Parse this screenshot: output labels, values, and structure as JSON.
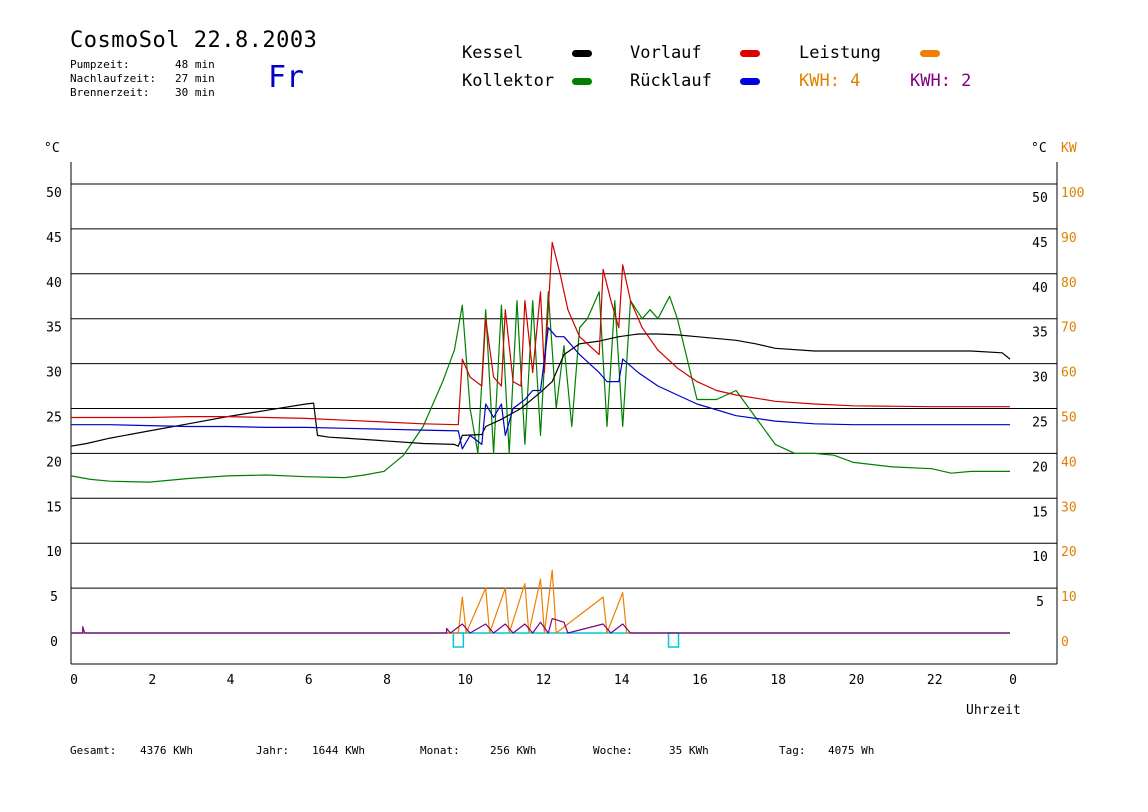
{
  "header": {
    "title": "CosmoSol 22.8.2003",
    "day": "Fr",
    "info": [
      {
        "label": "Pumpzeit:",
        "value": "48 min"
      },
      {
        "label": "Nachlaufzeit:",
        "value": "27 min"
      },
      {
        "label": "Brennerzeit:",
        "value": "30 min"
      }
    ]
  },
  "legend": {
    "kessel": "Kessel",
    "kollektor": "Kollektor",
    "vorlauf": "Vorlauf",
    "ruecklauf": "Rücklauf",
    "leistung": "Leistung",
    "kwh1": "KWH: 4",
    "kwh2": "KWH: 2"
  },
  "footer": {
    "gesamt_label": "Gesamt:",
    "gesamt_value": "4376 KWh",
    "jahr_label": "Jahr:",
    "jahr_value": "1644 KWh",
    "monat_label": "Monat:",
    "monat_value": "256 KWh",
    "woche_label": "Woche:",
    "woche_value": "35 KWh",
    "tag_label": "Tag:",
    "tag_value": "4075 Wh"
  },
  "colors": {
    "kessel": "#000000",
    "kollektor": "#008000",
    "vorlauf": "#d00000",
    "ruecklauf": "#0000c8",
    "leistung": "#f08000",
    "kwh2": "#800080",
    "pump": "#00c8d8"
  },
  "chart_data": {
    "type": "line",
    "xlabel": "Uhrzeit",
    "ylabel_left": "°C",
    "ylabel_right_temp": "°C",
    "ylabel_right_power": "KW",
    "xlim": [
      0,
      24
    ],
    "ylim": [
      0,
      50
    ],
    "x_ticks": [
      "0",
      "2",
      "4",
      "6",
      "8",
      "10",
      "12",
      "14",
      "16",
      "18",
      "20",
      "22",
      "0"
    ],
    "y_ticks_left": [
      "0",
      "5",
      "10",
      "15",
      "20",
      "25",
      "30",
      "35",
      "40",
      "45",
      "50"
    ],
    "y_ticks_right_temp": [
      "5",
      "10",
      "15",
      "20",
      "25",
      "30",
      "35",
      "40",
      "45",
      "50"
    ],
    "y_ticks_right_power": [
      "0",
      "10",
      "20",
      "30",
      "40",
      "50",
      "60",
      "70",
      "80",
      "90",
      "100"
    ],
    "grid": true,
    "series": [
      {
        "name": "Kessel",
        "key": "kessel",
        "points": [
          [
            0,
            20.8
          ],
          [
            0.4,
            21.1
          ],
          [
            1,
            21.7
          ],
          [
            2,
            22.5
          ],
          [
            3,
            23.3
          ],
          [
            4,
            24.1
          ],
          [
            5,
            24.8
          ],
          [
            6,
            25.5
          ],
          [
            6.2,
            25.6
          ],
          [
            6.3,
            22.0
          ],
          [
            6.6,
            21.8
          ],
          [
            7,
            21.7
          ],
          [
            8,
            21.4
          ],
          [
            9,
            21.1
          ],
          [
            9.8,
            21.0
          ],
          [
            9.9,
            20.8
          ],
          [
            10,
            22.0
          ],
          [
            10.5,
            22.1
          ],
          [
            10.6,
            23.0
          ],
          [
            11,
            23.8
          ],
          [
            11.5,
            25.0
          ],
          [
            12,
            26.8
          ],
          [
            12.3,
            28.0
          ],
          [
            12.6,
            31.0
          ],
          [
            13,
            32.2
          ],
          [
            13.5,
            32.5
          ],
          [
            14,
            33.0
          ],
          [
            14.5,
            33.3
          ],
          [
            15,
            33.3
          ],
          [
            15.5,
            33.2
          ],
          [
            16,
            33.0
          ],
          [
            17,
            32.6
          ],
          [
            17.5,
            32.2
          ],
          [
            18,
            31.7
          ],
          [
            19,
            31.4
          ],
          [
            20,
            31.4
          ],
          [
            21,
            31.4
          ],
          [
            22,
            31.4
          ],
          [
            23,
            31.4
          ],
          [
            23.8,
            31.2
          ],
          [
            24,
            30.5
          ]
        ]
      },
      {
        "name": "Kollektor",
        "key": "kollektor",
        "points": [
          [
            0,
            17.5
          ],
          [
            0.5,
            17.1
          ],
          [
            1,
            16.9
          ],
          [
            2,
            16.8
          ],
          [
            3,
            17.2
          ],
          [
            4,
            17.5
          ],
          [
            5,
            17.6
          ],
          [
            6,
            17.4
          ],
          [
            7,
            17.3
          ],
          [
            7.5,
            17.6
          ],
          [
            8,
            18.0
          ],
          [
            8.5,
            19.8
          ],
          [
            9,
            23.0
          ],
          [
            9.5,
            28.0
          ],
          [
            9.8,
            31.5
          ],
          [
            10,
            36.5
          ],
          [
            10.2,
            25.0
          ],
          [
            10.4,
            20.0
          ],
          [
            10.6,
            36.0
          ],
          [
            10.8,
            20.0
          ],
          [
            11.0,
            36.5
          ],
          [
            11.2,
            20.0
          ],
          [
            11.4,
            37.0
          ],
          [
            11.6,
            21.0
          ],
          [
            11.8,
            37.0
          ],
          [
            12.0,
            22.0
          ],
          [
            12.2,
            38.0
          ],
          [
            12.4,
            25.0
          ],
          [
            12.6,
            32.0
          ],
          [
            12.8,
            23.0
          ],
          [
            13.0,
            34.0
          ],
          [
            13.2,
            35.0
          ],
          [
            13.5,
            38.0
          ],
          [
            13.7,
            23.0
          ],
          [
            13.9,
            37.0
          ],
          [
            14.1,
            23.0
          ],
          [
            14.3,
            37.0
          ],
          [
            14.6,
            35.0
          ],
          [
            14.8,
            36.0
          ],
          [
            15,
            35.0
          ],
          [
            15.3,
            37.5
          ],
          [
            15.5,
            35.0
          ],
          [
            16,
            26.0
          ],
          [
            16.5,
            26.0
          ],
          [
            17,
            27.0
          ],
          [
            17.5,
            24.0
          ],
          [
            18,
            21.0
          ],
          [
            18.5,
            20.0
          ],
          [
            19,
            20.0
          ],
          [
            19.5,
            19.8
          ],
          [
            20,
            19.0
          ],
          [
            21,
            18.5
          ],
          [
            22,
            18.3
          ],
          [
            22.5,
            17.8
          ],
          [
            23,
            18.0
          ],
          [
            24,
            18.0
          ]
        ]
      },
      {
        "name": "Vorlauf",
        "key": "vorlauf",
        "points": [
          [
            0,
            24.0
          ],
          [
            1,
            24.0
          ],
          [
            2,
            24.0
          ],
          [
            3,
            24.1
          ],
          [
            4,
            24.1
          ],
          [
            5,
            24.0
          ],
          [
            6,
            23.9
          ],
          [
            7,
            23.7
          ],
          [
            8,
            23.5
          ],
          [
            9,
            23.3
          ],
          [
            9.9,
            23.2
          ],
          [
            10,
            30.5
          ],
          [
            10.2,
            28.5
          ],
          [
            10.5,
            27.5
          ],
          [
            10.6,
            35.0
          ],
          [
            10.8,
            28.5
          ],
          [
            11.0,
            27.5
          ],
          [
            11.1,
            36.0
          ],
          [
            11.3,
            28.0
          ],
          [
            11.5,
            27.5
          ],
          [
            11.6,
            37.0
          ],
          [
            11.8,
            29.0
          ],
          [
            12.0,
            38.0
          ],
          [
            12.1,
            29.0
          ],
          [
            12.3,
            43.5
          ],
          [
            12.5,
            40.0
          ],
          [
            12.7,
            36.0
          ],
          [
            13,
            33.0
          ],
          [
            13.5,
            31.0
          ],
          [
            13.6,
            40.5
          ],
          [
            13.8,
            37.0
          ],
          [
            14.0,
            34.0
          ],
          [
            14.1,
            41.0
          ],
          [
            14.3,
            37.0
          ],
          [
            14.6,
            34.0
          ],
          [
            15,
            31.5
          ],
          [
            15.5,
            29.5
          ],
          [
            16,
            28.0
          ],
          [
            16.5,
            27.0
          ],
          [
            17,
            26.5
          ],
          [
            18,
            25.8
          ],
          [
            19,
            25.5
          ],
          [
            20,
            25.3
          ],
          [
            22,
            25.2
          ],
          [
            24,
            25.2
          ]
        ]
      },
      {
        "name": "Rücklauf",
        "key": "ruecklauf",
        "points": [
          [
            0,
            23.2
          ],
          [
            1,
            23.2
          ],
          [
            2,
            23.1
          ],
          [
            3,
            23.0
          ],
          [
            4,
            23.0
          ],
          [
            5,
            22.9
          ],
          [
            6,
            22.9
          ],
          [
            7,
            22.8
          ],
          [
            8,
            22.7
          ],
          [
            9,
            22.6
          ],
          [
            9.9,
            22.5
          ],
          [
            10,
            20.5
          ],
          [
            10.2,
            22.0
          ],
          [
            10.5,
            21.0
          ],
          [
            10.6,
            25.5
          ],
          [
            10.8,
            24.0
          ],
          [
            11.0,
            25.5
          ],
          [
            11.1,
            22.0
          ],
          [
            11.3,
            25.0
          ],
          [
            11.6,
            26.0
          ],
          [
            11.8,
            27.0
          ],
          [
            12.0,
            27.0
          ],
          [
            12.2,
            34.0
          ],
          [
            12.4,
            33.0
          ],
          [
            12.6,
            33.0
          ],
          [
            13,
            31.0
          ],
          [
            13.5,
            29.0
          ],
          [
            13.7,
            28.0
          ],
          [
            14.0,
            28.0
          ],
          [
            14.1,
            30.5
          ],
          [
            14.5,
            29.0
          ],
          [
            15,
            27.5
          ],
          [
            15.5,
            26.5
          ],
          [
            16,
            25.5
          ],
          [
            17,
            24.2
          ],
          [
            18,
            23.6
          ],
          [
            19,
            23.3
          ],
          [
            20,
            23.2
          ],
          [
            22,
            23.2
          ],
          [
            24,
            23.2
          ]
        ]
      },
      {
        "name": "Leistung",
        "key": "leistung",
        "points": [
          [
            0,
            0
          ],
          [
            9.9,
            0
          ],
          [
            10,
            4
          ],
          [
            10.1,
            0
          ],
          [
            10.6,
            5
          ],
          [
            10.7,
            0
          ],
          [
            11.1,
            5
          ],
          [
            11.2,
            0
          ],
          [
            11.6,
            5.5
          ],
          [
            11.7,
            0
          ],
          [
            12.0,
            6
          ],
          [
            12.1,
            0
          ],
          [
            12.3,
            7
          ],
          [
            12.4,
            0
          ],
          [
            13.6,
            4
          ],
          [
            13.7,
            0
          ],
          [
            14.1,
            4.5
          ],
          [
            14.2,
            0
          ],
          [
            24,
            0
          ]
        ]
      },
      {
        "name": "KWH",
        "key": "kwh2",
        "points": [
          [
            0,
            0
          ],
          [
            0.3,
            0
          ],
          [
            0.3,
            0.7
          ],
          [
            0.35,
            0
          ],
          [
            9.6,
            0
          ],
          [
            9.6,
            0.5
          ],
          [
            9.7,
            0
          ],
          [
            10.0,
            1.0
          ],
          [
            10.2,
            0
          ],
          [
            10.6,
            1.0
          ],
          [
            10.8,
            0
          ],
          [
            11.1,
            1.0
          ],
          [
            11.3,
            0
          ],
          [
            11.6,
            1.0
          ],
          [
            11.8,
            0
          ],
          [
            12.0,
            1.2
          ],
          [
            12.2,
            0
          ],
          [
            12.3,
            1.6
          ],
          [
            12.6,
            1.2
          ],
          [
            12.7,
            0
          ],
          [
            13.6,
            1.0
          ],
          [
            13.8,
            0
          ],
          [
            14.1,
            1.0
          ],
          [
            14.3,
            0
          ],
          [
            24,
            0
          ]
        ]
      }
    ],
    "pump_markers": [
      9.9,
      15.4
    ]
  }
}
